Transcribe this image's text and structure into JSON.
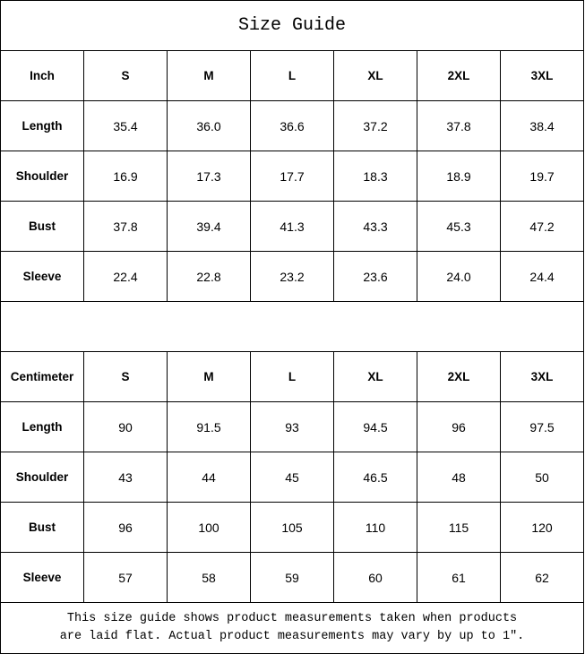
{
  "title": "Size Guide",
  "sizes": [
    "S",
    "M",
    "L",
    "XL",
    "2XL",
    "3XL"
  ],
  "inch": {
    "unit_label": "Inch",
    "rows": [
      {
        "label": "Length",
        "values": [
          "35.4",
          "36.0",
          "36.6",
          "37.2",
          "37.8",
          "38.4"
        ]
      },
      {
        "label": "Shoulder",
        "values": [
          "16.9",
          "17.3",
          "17.7",
          "18.3",
          "18.9",
          "19.7"
        ]
      },
      {
        "label": "Bust",
        "values": [
          "37.8",
          "39.4",
          "41.3",
          "43.3",
          "45.3",
          "47.2"
        ]
      },
      {
        "label": "Sleeve",
        "values": [
          "22.4",
          "22.8",
          "23.2",
          "23.6",
          "24.0",
          "24.4"
        ]
      }
    ]
  },
  "centimeter": {
    "unit_label": "Centimeter",
    "rows": [
      {
        "label": "Length",
        "values": [
          "90",
          "91.5",
          "93",
          "94.5",
          "96",
          "97.5"
        ]
      },
      {
        "label": "Shoulder",
        "values": [
          "43",
          "44",
          "45",
          "46.5",
          "48",
          "50"
        ]
      },
      {
        "label": "Bust",
        "values": [
          "96",
          "100",
          "105",
          "110",
          "115",
          "120"
        ]
      },
      {
        "label": "Sleeve",
        "values": [
          "57",
          "58",
          "59",
          "60",
          "61",
          "62"
        ]
      }
    ]
  },
  "note": {
    "line1": "This size guide shows product measurements taken when products",
    "line2": "are laid flat. Actual product measurements may vary by up to 1″."
  }
}
